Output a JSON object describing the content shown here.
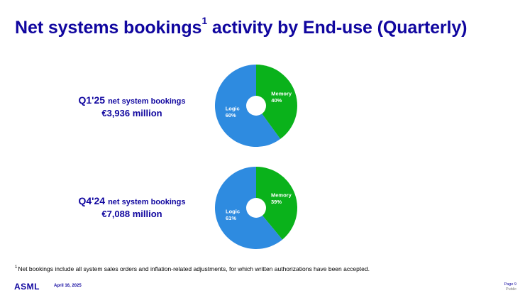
{
  "title": {
    "text": "Net systems bookings",
    "sup": "1",
    "text_after": " activity by End-use (Quarterly)"
  },
  "colors": {
    "brand": "#10069f",
    "logic": "#2e8be0",
    "memory": "#0ab21b"
  },
  "chart_data": [
    {
      "type": "pie",
      "period": "Q1'25",
      "description": "net system bookings",
      "total_text": "€3,936 million",
      "total": 3936,
      "unit": "€ million",
      "slices": [
        {
          "label": "Memory",
          "value": 40,
          "value_label": "40%",
          "color": "#0ab21b"
        },
        {
          "label": "Logic",
          "value": 60,
          "value_label": "60%",
          "color": "#2e8be0"
        }
      ]
    },
    {
      "type": "pie",
      "period": "Q4'24",
      "description": "net system bookings",
      "total_text": "€7,088 million",
      "total": 7088,
      "unit": "€ million",
      "slices": [
        {
          "label": "Memory",
          "value": 39,
          "value_label": "39%",
          "color": "#0ab21b"
        },
        {
          "label": "Logic",
          "value": 61,
          "value_label": "61%",
          "color": "#2e8be0"
        }
      ]
    }
  ],
  "footnote": {
    "marker": "1",
    "text": "Net bookings include all system sales orders and inflation-related adjustments, for which written authorizations have been accepted."
  },
  "footer": {
    "logo": "ASML",
    "date": "April 16, 2025",
    "page": "Page 9",
    "classification": "Public"
  }
}
